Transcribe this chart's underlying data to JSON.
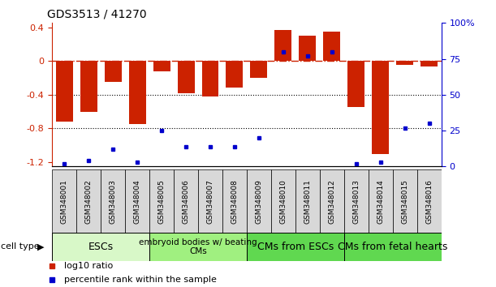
{
  "title": "GDS3513 / 41270",
  "samples": [
    "GSM348001",
    "GSM348002",
    "GSM348003",
    "GSM348004",
    "GSM348005",
    "GSM348006",
    "GSM348007",
    "GSM348008",
    "GSM348009",
    "GSM348010",
    "GSM348011",
    "GSM348012",
    "GSM348013",
    "GSM348014",
    "GSM348015",
    "GSM348016"
  ],
  "log10_ratio": [
    -0.72,
    -0.6,
    -0.25,
    -0.75,
    -0.12,
    -0.38,
    -0.42,
    -0.32,
    -0.2,
    0.37,
    0.3,
    0.35,
    -0.55,
    -1.1,
    -0.05,
    -0.07
  ],
  "percentile_rank": [
    2,
    4,
    12,
    3,
    25,
    14,
    14,
    14,
    20,
    80,
    77,
    80,
    2,
    3,
    27,
    30
  ],
  "cell_type_groups": [
    {
      "label": "ESCs",
      "start": 0,
      "end": 3,
      "color": "#c8f0b8"
    },
    {
      "label": "embryoid bodies w/ beating\nCMs",
      "start": 4,
      "end": 7,
      "color": "#90e880"
    },
    {
      "label": "CMs from ESCs",
      "start": 8,
      "end": 11,
      "color": "#50d040"
    },
    {
      "label": "CMs from fetal hearts",
      "start": 12,
      "end": 15,
      "color": "#50d040"
    }
  ],
  "bar_color": "#cc2200",
  "dot_color": "#0000cc",
  "background_color": "#ffffff",
  "ylim_left": [
    -1.25,
    0.45
  ],
  "ylim_right": [
    0,
    100
  ],
  "dotted_lines": [
    -0.4,
    -0.8
  ],
  "left_ticks": [
    -1.2,
    -0.8,
    -0.4,
    0,
    0.4
  ],
  "right_ticks": [
    0,
    25,
    50,
    75,
    100
  ],
  "right_tick_labels": [
    "0",
    "25",
    "50",
    "75",
    "100%"
  ],
  "group_colors": [
    "#d8f8c8",
    "#a0f080",
    "#60d850",
    "#60d850"
  ],
  "group_text_sizes": [
    9,
    7.5,
    9,
    9
  ]
}
